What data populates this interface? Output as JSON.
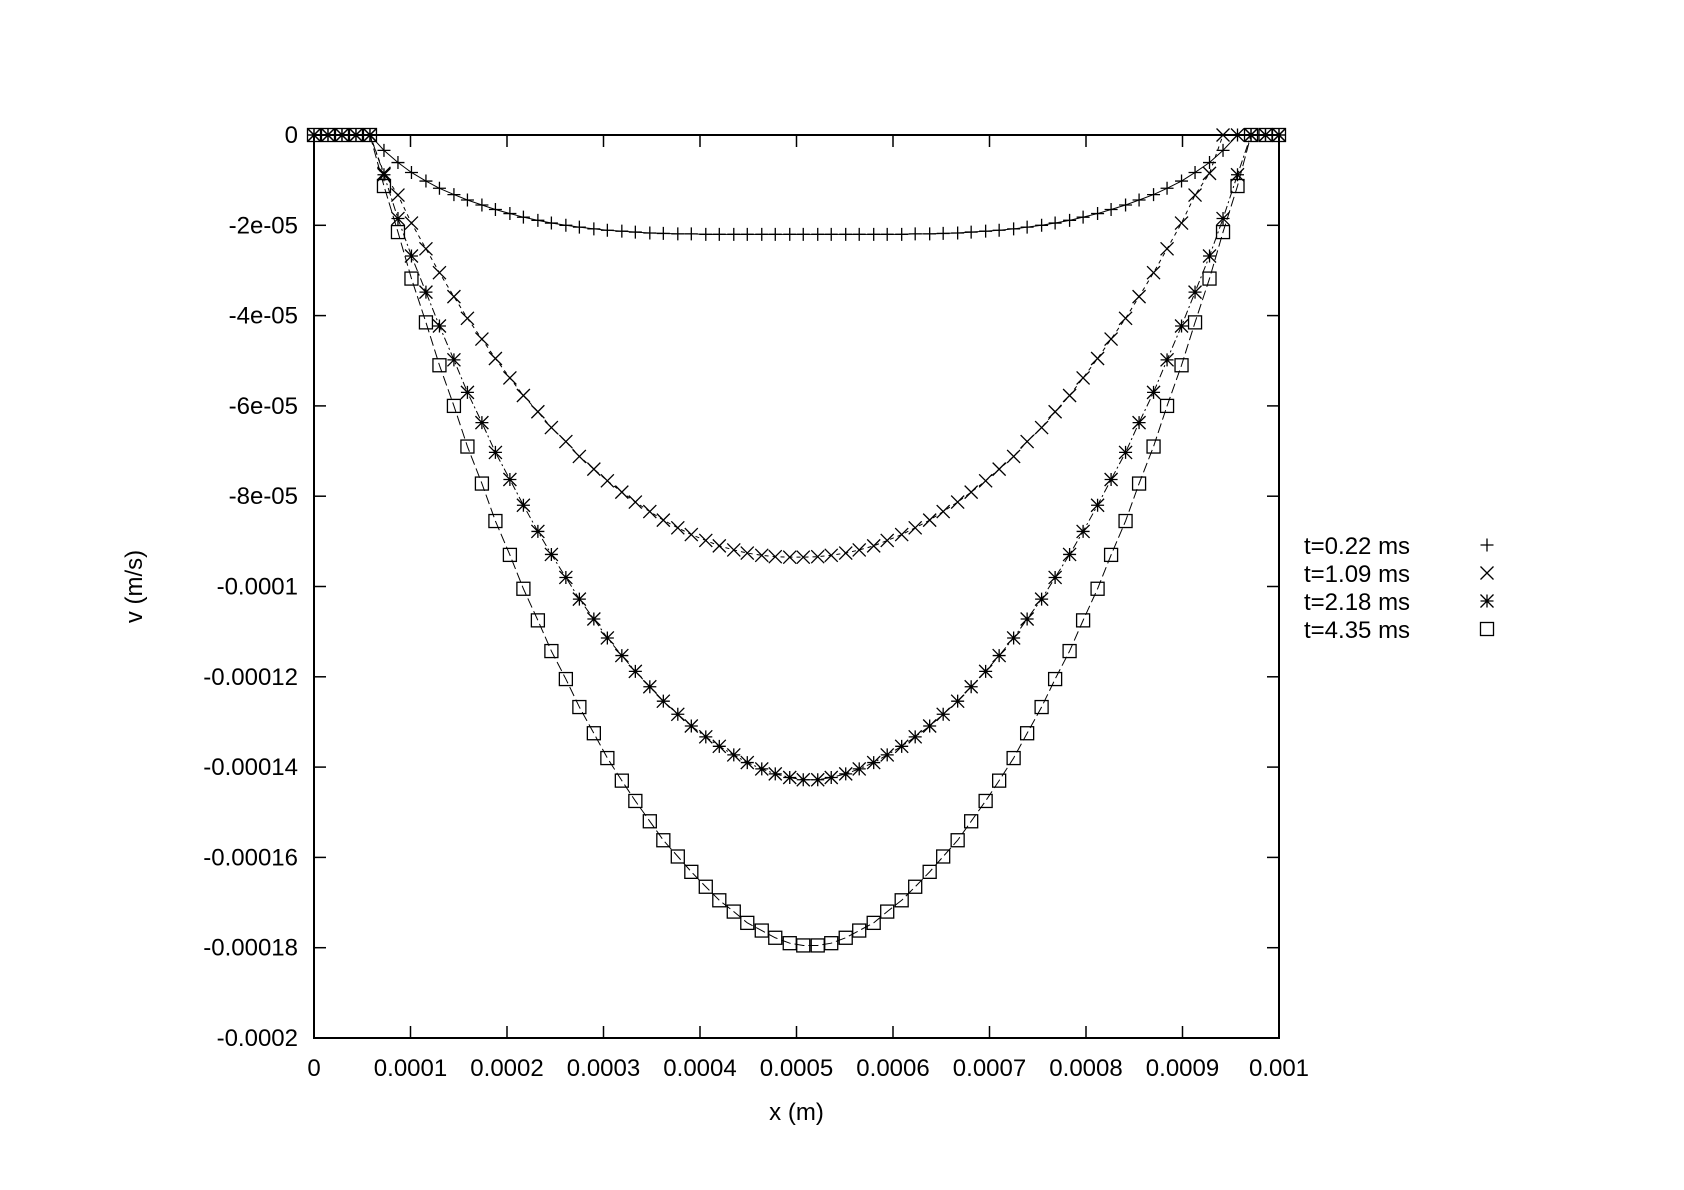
{
  "chart_data": {
    "type": "scatter",
    "title": "",
    "xlabel": "x (m)",
    "ylabel": "v (m/s)",
    "xlim": [
      0,
      0.001
    ],
    "ylim": [
      -0.0002,
      0
    ],
    "grid": false,
    "legend_position": "right",
    "x_ticks": [
      {
        "value": 0,
        "label": "0"
      },
      {
        "value": 0.0001,
        "label": "0.0001"
      },
      {
        "value": 0.0002,
        "label": "0.0002"
      },
      {
        "value": 0.0003,
        "label": "0.0003"
      },
      {
        "value": 0.0004,
        "label": "0.0004"
      },
      {
        "value": 0.0005,
        "label": "0.0005"
      },
      {
        "value": 0.0006,
        "label": "0.0006"
      },
      {
        "value": 0.0007,
        "label": "0.0007"
      },
      {
        "value": 0.0008,
        "label": "0.0008"
      },
      {
        "value": 0.0009,
        "label": "0.0009"
      },
      {
        "value": 0.001,
        "label": "0.001"
      }
    ],
    "y_ticks": [
      {
        "value": 0,
        "label": "0"
      },
      {
        "value": -2e-05,
        "label": "-2e-05"
      },
      {
        "value": -4e-05,
        "label": "-4e-05"
      },
      {
        "value": -6e-05,
        "label": "-6e-05"
      },
      {
        "value": -8e-05,
        "label": "-8e-05"
      },
      {
        "value": -0.0001,
        "label": "-0.0001"
      },
      {
        "value": -0.00012,
        "label": "-0.00012"
      },
      {
        "value": -0.00014,
        "label": "-0.00014"
      },
      {
        "value": -0.00016,
        "label": "-0.00016"
      },
      {
        "value": -0.00018,
        "label": "-0.00018"
      },
      {
        "value": -0.0002,
        "label": "-0.0002"
      }
    ],
    "series": [
      {
        "name": "t=0.22 ms",
        "marker": "plus",
        "x": [
          0.0,
          1.45e-05,
          2.9e-05,
          4.35e-05,
          5.8e-05,
          7.25e-05,
          8.7e-05,
          0.000101,
          0.000116,
          0.00013,
          0.000145,
          0.000159,
          0.000174,
          0.000188,
          0.000203,
          0.000217,
          0.000232,
          0.000246,
          0.000261,
          0.000275,
          0.00029,
          0.000304,
          0.000319,
          0.000333,
          0.000348,
          0.000362,
          0.000377,
          0.000391,
          0.000406,
          0.00042,
          0.000435,
          0.000449,
          0.000464,
          0.000478,
          0.000493,
          0.000507,
          0.000522,
          0.000536,
          0.000551,
          0.000565,
          0.00058,
          0.000594,
          0.000609,
          0.000623,
          0.000638,
          0.000652,
          0.000667,
          0.000681,
          0.000696,
          0.00071,
          0.000725,
          0.000739,
          0.000754,
          0.000768,
          0.000783,
          0.000797,
          0.000812,
          0.000826,
          0.000841,
          0.000855,
          0.00087,
          0.000884,
          0.000899,
          0.000913,
          0.000928,
          0.000942,
          0.000957,
          0.000971,
          0.000986,
          0.001
        ],
        "y": [
          0,
          0,
          0,
          0,
          0,
          -3.4e-06,
          -6.1e-06,
          -8.3e-06,
          -1.02e-05,
          -1.18e-05,
          -1.32e-05,
          -1.44e-05,
          -1.55e-05,
          -1.65e-05,
          -1.74e-05,
          -1.82e-05,
          -1.89e-05,
          -1.95e-05,
          -2e-05,
          -2.04e-05,
          -2.08e-05,
          -2.11e-05,
          -2.13e-05,
          -2.15e-05,
          -2.17e-05,
          -2.18e-05,
          -2.19e-05,
          -2.19e-05,
          -2.2e-05,
          -2.2e-05,
          -2.2e-05,
          -2.2e-05,
          -2.2e-05,
          -2.2e-05,
          -2.2e-05,
          -2.2e-05,
          -2.2e-05,
          -2.2e-05,
          -2.2e-05,
          -2.2e-05,
          -2.2e-05,
          -2.2e-05,
          -2.2e-05,
          -2.19e-05,
          -2.19e-05,
          -2.18e-05,
          -2.17e-05,
          -2.15e-05,
          -2.13e-05,
          -2.11e-05,
          -2.08e-05,
          -2.04e-05,
          -2e-05,
          -1.95e-05,
          -1.89e-05,
          -1.82e-05,
          -1.74e-05,
          -1.65e-05,
          -1.55e-05,
          -1.44e-05,
          -1.32e-05,
          -1.18e-05,
          -1.02e-05,
          -8.3e-06,
          -6.1e-06,
          -3.4e-06,
          0,
          0,
          0,
          0
        ]
      },
      {
        "name": "t=1.09 ms",
        "marker": "cross",
        "x": [
          0.0,
          1.45e-05,
          2.9e-05,
          4.35e-05,
          5.8e-05,
          7.25e-05,
          8.7e-05,
          0.000101,
          0.000116,
          0.00013,
          0.000145,
          0.000159,
          0.000174,
          0.000188,
          0.000203,
          0.000217,
          0.000232,
          0.000246,
          0.000261,
          0.000275,
          0.00029,
          0.000304,
          0.000319,
          0.000333,
          0.000348,
          0.000362,
          0.000377,
          0.000391,
          0.000406,
          0.00042,
          0.000435,
          0.000449,
          0.000464,
          0.000478,
          0.000493,
          0.000507,
          0.000522,
          0.000536,
          0.000551,
          0.000565,
          0.00058,
          0.000594,
          0.000609,
          0.000623,
          0.000638,
          0.000652,
          0.000667,
          0.000681,
          0.000696,
          0.00071,
          0.000725,
          0.000739,
          0.000754,
          0.000768,
          0.000783,
          0.000797,
          0.000812,
          0.000826,
          0.000841,
          0.000855,
          0.00087,
          0.000884,
          0.000899,
          0.000913,
          0.000928,
          0.000942,
          0.000957,
          0.000971,
          0.000986,
          0.001
        ],
        "y": [
          0,
          0,
          0,
          0,
          0,
          -8.5e-06,
          -1.33e-05,
          -1.95e-05,
          -2.52e-05,
          -3.05e-05,
          -3.58e-05,
          -4.06e-05,
          -4.52e-05,
          -4.95e-05,
          -5.38e-05,
          -5.77e-05,
          -6.13e-05,
          -6.48e-05,
          -6.79e-05,
          -7.12e-05,
          -7.4e-05,
          -7.66e-05,
          -7.91e-05,
          -8.13e-05,
          -8.34e-05,
          -8.53e-05,
          -8.7e-05,
          -8.85e-05,
          -8.98e-05,
          -9.1e-05,
          -9.19e-05,
          -9.26e-05,
          -9.31e-05,
          -9.34e-05,
          -9.35e-05,
          -9.35e-05,
          -9.34e-05,
          -9.31e-05,
          -9.26e-05,
          -9.19e-05,
          -9.1e-05,
          -8.98e-05,
          -8.85e-05,
          -8.7e-05,
          -8.53e-05,
          -8.34e-05,
          -8.13e-05,
          -7.91e-05,
          -7.66e-05,
          -7.4e-05,
          -7.12e-05,
          -6.79e-05,
          -6.48e-05,
          -6.13e-05,
          -5.77e-05,
          -5.38e-05,
          -4.95e-05,
          -4.52e-05,
          -4.06e-05,
          -3.58e-05,
          -3.05e-05,
          -2.52e-05,
          -1.95e-05,
          -1.33e-05,
          -8.5e-06,
          0,
          0,
          0,
          0,
          0
        ]
      },
      {
        "name": "t=2.18 ms",
        "marker": "star",
        "x": [
          0.0,
          1.45e-05,
          2.9e-05,
          4.35e-05,
          5.8e-05,
          7.25e-05,
          8.7e-05,
          0.000101,
          0.000116,
          0.00013,
          0.000145,
          0.000159,
          0.000174,
          0.000188,
          0.000203,
          0.000217,
          0.000232,
          0.000246,
          0.000261,
          0.000275,
          0.00029,
          0.000304,
          0.000319,
          0.000333,
          0.000348,
          0.000362,
          0.000377,
          0.000391,
          0.000406,
          0.00042,
          0.000435,
          0.000449,
          0.000464,
          0.000478,
          0.000493,
          0.000507,
          0.000522,
          0.000536,
          0.000551,
          0.000565,
          0.00058,
          0.000594,
          0.000609,
          0.000623,
          0.000638,
          0.000652,
          0.000667,
          0.000681,
          0.000696,
          0.00071,
          0.000725,
          0.000739,
          0.000754,
          0.000768,
          0.000783,
          0.000797,
          0.000812,
          0.000826,
          0.000841,
          0.000855,
          0.00087,
          0.000884,
          0.000899,
          0.000913,
          0.000928,
          0.000942,
          0.000957,
          0.000971,
          0.000986,
          0.001
        ],
        "y": [
          0,
          0,
          0,
          0,
          0,
          -8.8e-06,
          -1.85e-05,
          -2.68e-05,
          -3.48e-05,
          -4.23e-05,
          -4.98e-05,
          -5.7e-05,
          -6.37e-05,
          -7.03e-05,
          -7.63e-05,
          -8.2e-05,
          -8.78e-05,
          -9.29e-05,
          -9.8e-05,
          -0.0001028,
          -0.0001072,
          -0.0001114,
          -0.0001153,
          -0.0001188,
          -0.0001222,
          -0.0001254,
          -0.0001283,
          -0.0001309,
          -0.0001333,
          -0.0001354,
          -0.0001373,
          -0.000139,
          -0.0001404,
          -0.0001415,
          -0.0001423,
          -0.0001428,
          -0.0001428,
          -0.0001423,
          -0.0001415,
          -0.0001404,
          -0.000139,
          -0.0001373,
          -0.0001354,
          -0.0001333,
          -0.0001309,
          -0.0001283,
          -0.0001254,
          -0.0001222,
          -0.0001188,
          -0.0001153,
          -0.0001114,
          -0.0001072,
          -0.0001028,
          -9.8e-05,
          -9.29e-05,
          -8.78e-05,
          -8.2e-05,
          -7.63e-05,
          -7.03e-05,
          -6.37e-05,
          -5.7e-05,
          -4.98e-05,
          -4.23e-05,
          -3.48e-05,
          -2.68e-05,
          -1.85e-05,
          -8.8e-06,
          0,
          0,
          0
        ]
      },
      {
        "name": "t=4.35 ms",
        "marker": "square",
        "x": [
          0.0,
          1.45e-05,
          2.9e-05,
          4.35e-05,
          5.8e-05,
          7.25e-05,
          8.7e-05,
          0.000101,
          0.000116,
          0.00013,
          0.000145,
          0.000159,
          0.000174,
          0.000188,
          0.000203,
          0.000217,
          0.000232,
          0.000246,
          0.000261,
          0.000275,
          0.00029,
          0.000304,
          0.000319,
          0.000333,
          0.000348,
          0.000362,
          0.000377,
          0.000391,
          0.000406,
          0.00042,
          0.000435,
          0.000449,
          0.000464,
          0.000478,
          0.000493,
          0.000507,
          0.000522,
          0.000536,
          0.000551,
          0.000565,
          0.00058,
          0.000594,
          0.000609,
          0.000623,
          0.000638,
          0.000652,
          0.000667,
          0.000681,
          0.000696,
          0.00071,
          0.000725,
          0.000739,
          0.000754,
          0.000768,
          0.000783,
          0.000797,
          0.000812,
          0.000826,
          0.000841,
          0.000855,
          0.00087,
          0.000884,
          0.000899,
          0.000913,
          0.000928,
          0.000942,
          0.000957,
          0.000971,
          0.000986,
          0.001
        ],
        "y": [
          0,
          0,
          0,
          0,
          0,
          -1.13e-05,
          -2.15e-05,
          -3.18e-05,
          -4.15e-05,
          -5.1e-05,
          -6e-05,
          -6.9e-05,
          -7.72e-05,
          -8.55e-05,
          -9.3e-05,
          -0.0001005,
          -0.0001075,
          -0.0001143,
          -0.0001205,
          -0.0001267,
          -0.0001325,
          -0.000138,
          -0.000143,
          -0.0001475,
          -0.000152,
          -0.0001562,
          -0.0001598,
          -0.0001632,
          -0.0001665,
          -0.0001695,
          -0.000172,
          -0.0001745,
          -0.0001762,
          -0.0001778,
          -0.000179,
          -0.0001795,
          -0.0001795,
          -0.000179,
          -0.0001778,
          -0.0001762,
          -0.0001745,
          -0.000172,
          -0.0001695,
          -0.0001665,
          -0.0001632,
          -0.0001598,
          -0.0001562,
          -0.000152,
          -0.0001475,
          -0.000143,
          -0.000138,
          -0.0001325,
          -0.0001267,
          -0.0001205,
          -0.0001143,
          -0.0001075,
          -0.0001005,
          -9.3e-05,
          -8.55e-05,
          -7.72e-05,
          -6.9e-05,
          -6e-05,
          -5.1e-05,
          -4.15e-05,
          -3.18e-05,
          -2.15e-05,
          -1.13e-05,
          0,
          0,
          0
        ]
      }
    ]
  }
}
